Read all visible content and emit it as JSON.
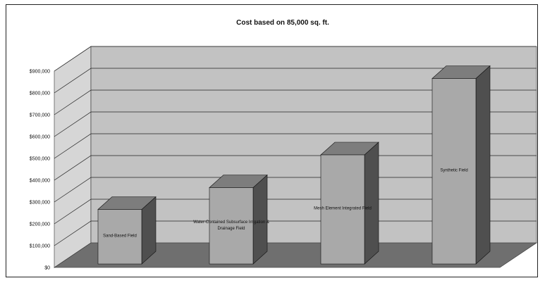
{
  "chart_data": {
    "type": "bar",
    "title": "Cost based on 85,000 sq. ft.",
    "categories": [
      "Sand-Based Field",
      "Water-Contained Subsurface Irrigation & Drainage Field",
      "Mesh Element Integrated Field",
      "Synthetic Field"
    ],
    "values": [
      250000,
      350000,
      500000,
      850000
    ],
    "y_ticks": [
      "$0",
      "$100,000",
      "$200,000",
      "$300,000",
      "$400,000",
      "$500,000",
      "$600,000",
      "$700,000",
      "$800,000",
      "$900,000"
    ],
    "ylim": [
      0,
      900000
    ],
    "xlabel": "",
    "ylabel": "",
    "grid": true,
    "legend": "none",
    "style": "3d-column",
    "colors": {
      "wall": "#c2c2c2",
      "side_wall": "#d6d6d6",
      "floor": "#6f6f6f",
      "bar_front": "#a9a9a9",
      "bar_top": "#7d7d7d",
      "bar_side": "#4f4f4f",
      "gridline": "#222222"
    }
  }
}
